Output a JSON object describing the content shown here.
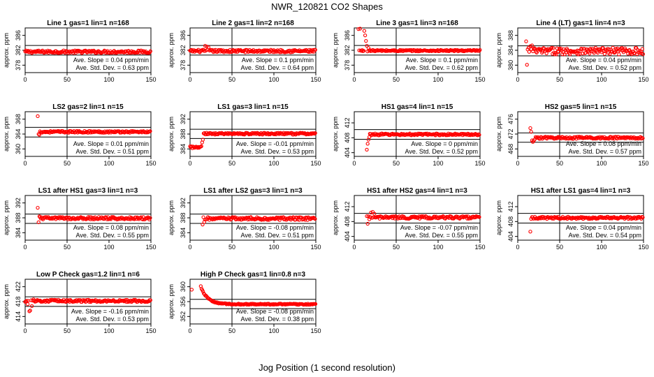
{
  "page": {
    "title": "NWR_120821  CO2 Shapes",
    "xlabel": "Jog Position (1 second resolution)"
  },
  "colors": {
    "points": "#ff0000",
    "axis": "#000000"
  },
  "chart_data": [
    {
      "type": "scatter",
      "title": "Line 1 gas=1 lin=1 n=168",
      "ylabel": "approx. ppm",
      "xlim": [
        0,
        150
      ],
      "ylim": [
        376,
        388
      ],
      "yticks": [
        378,
        382,
        386
      ],
      "xticks": [
        0,
        50,
        100,
        150
      ],
      "hlines": [
        383.3,
        380.7
      ],
      "vline": 50,
      "slope_text": "Ave. Slope = 0.04  ppm/min",
      "std_text": "Ave. Std. Dev. = 0.63  ppm",
      "shape": {
        "level": 381.6,
        "start": 0,
        "noise": 0.35,
        "spikes": []
      }
    },
    {
      "type": "scatter",
      "title": "Line 2 gas=1 lin=2 n=168",
      "ylabel": "approx. ppm",
      "xlim": [
        0,
        150
      ],
      "ylim": [
        376,
        388
      ],
      "yticks": [
        378,
        382,
        386
      ],
      "xticks": [
        0,
        50,
        100,
        150
      ],
      "hlines": [
        383.3,
        380.7
      ],
      "vline": 50,
      "slope_text": "Ave. Slope = 0.1  ppm/min",
      "std_text": "Ave. Std. Dev. = 0.64  ppm",
      "shape": {
        "level": 381.8,
        "start": 0,
        "noise": 0.35,
        "spikes": [
          [
            18,
            383.2
          ],
          [
            20,
            383.0
          ],
          [
            22,
            382.8
          ]
        ]
      }
    },
    {
      "type": "scatter",
      "title": "Line 3 gas=1 lin=3 n=168",
      "ylabel": "approx. ppm",
      "xlim": [
        0,
        150
      ],
      "ylim": [
        376,
        388
      ],
      "yticks": [
        378,
        382,
        386
      ],
      "xticks": [
        0,
        50,
        100,
        150
      ],
      "hlines": [
        383.3,
        380.7
      ],
      "vline": 50,
      "slope_text": "Ave. Slope = 0.1  ppm/min",
      "std_text": "Ave. Std. Dev. = 0.62  ppm",
      "shape": {
        "level": 381.9,
        "start": 5,
        "noise": 0.2,
        "spikes": [
          [
            5,
            387.7
          ],
          [
            7,
            387.8
          ],
          [
            12,
            387.2
          ],
          [
            13,
            386.0
          ],
          [
            14,
            384.5
          ],
          [
            15,
            383.2
          ],
          [
            17,
            382.6
          ]
        ]
      }
    },
    {
      "type": "scatter",
      "title": "Line 4 (LT) gas=1 lin=4 n=3",
      "ylabel": "approx. ppm",
      "xlim": [
        0,
        150
      ],
      "ylim": [
        378,
        390
      ],
      "yticks": [
        380,
        384,
        388
      ],
      "xticks": [
        0,
        50,
        100,
        150
      ],
      "hlines": [
        385.2,
        382.5
      ],
      "vline": 50,
      "slope_text": "Ave. Slope = 0.04  ppm/min",
      "std_text": "Ave. Std. Dev. = 0.52  ppm",
      "shape": {
        "level": 383.8,
        "start": 10,
        "noise": 0.9,
        "spikes": [
          [
            10,
            386.4
          ],
          [
            11,
            380.1
          ],
          [
            13,
            384.7
          ],
          [
            15,
            385.1
          ],
          [
            17,
            385.3
          ]
        ]
      }
    },
    {
      "type": "scatter",
      "title": "LS2 gas=2 lin=1 n=15",
      "ylabel": "approx. ppm",
      "xlim": [
        0,
        150
      ],
      "ylim": [
        358,
        370
      ],
      "yticks": [
        360,
        364,
        368
      ],
      "xticks": [
        0,
        50,
        100,
        150
      ],
      "hlines": [
        365.8,
        363.2
      ],
      "vline": 50,
      "slope_text": "Ave. Slope = 0.01  ppm/min",
      "std_text": "Ave. Std. Dev. = 0.51  ppm",
      "shape": {
        "level": 364.6,
        "start": 15,
        "noise": 0.25,
        "spikes": [
          [
            15,
            368.8
          ],
          [
            16,
            364.0
          ],
          [
            17,
            363.8
          ]
        ]
      }
    },
    {
      "type": "scatter",
      "title": "LS1 gas=3 lin=1 n=15",
      "ylabel": "approx. ppm",
      "xlim": [
        0,
        150
      ],
      "ylim": [
        382,
        394
      ],
      "yticks": [
        384,
        388,
        392
      ],
      "xticks": [
        0,
        50,
        100,
        150
      ],
      "hlines": [
        389.3,
        386.8
      ],
      "vline": 50,
      "slope_text": "Ave. Slope = -0.01  ppm/min",
      "std_text": "Ave. Std. Dev. = 0.53  ppm",
      "shape": {
        "level": 388.1,
        "start": 0,
        "noise": 0.25,
        "step": [
          16,
          384.4
        ]
      }
    },
    {
      "type": "scatter",
      "title": "HS1 gas=4 lin=1 n=15",
      "ylabel": "approx. ppm",
      "xlim": [
        0,
        150
      ],
      "ylim": [
        403,
        415
      ],
      "yticks": [
        404,
        408,
        412
      ],
      "xticks": [
        0,
        50,
        100,
        150
      ],
      "hlines": [
        410.2,
        407.6
      ],
      "vline": 50,
      "slope_text": "Ave. Slope = 0  ppm/min",
      "std_text": "Ave. Std. Dev. = 0.52  ppm",
      "shape": {
        "level": 408.9,
        "start": 15,
        "noise": 0.25,
        "spikes": [
          [
            15,
            404.8
          ],
          [
            16,
            406.4
          ],
          [
            17,
            407.5
          ],
          [
            18,
            408.2
          ]
        ]
      }
    },
    {
      "type": "scatter",
      "title": "HS2 gas=5 lin=1 n=15",
      "ylabel": "approx. ppm",
      "xlim": [
        0,
        150
      ],
      "ylim": [
        466,
        478
      ],
      "yticks": [
        468,
        472,
        476
      ],
      "xticks": [
        0,
        50,
        100,
        150
      ],
      "hlines": [
        472.3,
        469.8
      ],
      "vline": 50,
      "slope_text": "Ave. Slope = 0.08  ppm/min",
      "std_text": "Ave. Std. Dev. = 0.57  ppm",
      "shape": {
        "level": 471.0,
        "start": 15,
        "noise": 0.3,
        "spikes": [
          [
            15,
            473.6
          ],
          [
            16,
            472.6
          ],
          [
            17,
            470.3
          ],
          [
            18,
            469.9
          ],
          [
            19,
            470.2
          ],
          [
            20,
            470.5
          ]
        ]
      }
    },
    {
      "type": "scatter",
      "title": "LS1 after HS1 gas=3 lin=1 n=3",
      "ylabel": "approx. ppm",
      "xlim": [
        0,
        150
      ],
      "ylim": [
        382,
        394
      ],
      "yticks": [
        384,
        388,
        392
      ],
      "xticks": [
        0,
        50,
        100,
        150
      ],
      "hlines": [
        389.0,
        386.5
      ],
      "vline": 50,
      "slope_text": "Ave. Slope = 0.08  ppm/min",
      "std_text": "Ave. Std. Dev. = 0.55  ppm",
      "shape": {
        "level": 387.9,
        "start": 15,
        "noise": 0.35,
        "spikes": [
          [
            15,
            390.7
          ],
          [
            16,
            386.8
          ],
          [
            17,
            388.4
          ]
        ]
      }
    },
    {
      "type": "scatter",
      "title": "LS1 after LS2 gas=3 lin=1 n=3",
      "ylabel": "approx. ppm",
      "xlim": [
        0,
        150
      ],
      "ylim": [
        382,
        394
      ],
      "yticks": [
        384,
        388,
        392
      ],
      "xticks": [
        0,
        50,
        100,
        150
      ],
      "hlines": [
        389.0,
        386.5
      ],
      "vline": 50,
      "slope_text": "Ave. Slope = -0.08  ppm/min",
      "std_text": "Ave. Std. Dev. = 0.51  ppm",
      "shape": {
        "level": 387.8,
        "start": 15,
        "noise": 0.4,
        "spikes": [
          [
            15,
            386.2
          ],
          [
            17,
            386.9
          ],
          [
            19,
            387.6
          ]
        ]
      }
    },
    {
      "type": "scatter",
      "title": "HS1 after HS2 gas=4 lin=1 n=3",
      "ylabel": "approx. ppm",
      "xlim": [
        0,
        150
      ],
      "ylim": [
        403,
        415
      ],
      "yticks": [
        404,
        408,
        412
      ],
      "xticks": [
        0,
        50,
        100,
        150
      ],
      "hlines": [
        410.2,
        407.6
      ],
      "vline": 50,
      "slope_text": "Ave. Slope = -0.07  ppm/min",
      "std_text": "Ave. Std. Dev. = 0.55  ppm",
      "shape": {
        "level": 409.1,
        "start": 15,
        "noise": 0.35,
        "spikes": [
          [
            16,
            407.4
          ],
          [
            18,
            408.6
          ],
          [
            20,
            410.4
          ],
          [
            22,
            410.6
          ],
          [
            24,
            410.1
          ]
        ]
      }
    },
    {
      "type": "scatter",
      "title": "HS1 after LS1 gas=4 lin=1 n=3",
      "ylabel": "approx. ppm",
      "xlim": [
        0,
        150
      ],
      "ylim": [
        403,
        415
      ],
      "yticks": [
        404,
        408,
        412
      ],
      "xticks": [
        0,
        50,
        100,
        150
      ],
      "hlines": [
        410.2,
        407.6
      ],
      "vline": 50,
      "slope_text": "Ave. Slope = 0.04  ppm/min",
      "std_text": "Ave. Std. Dev. = 0.54  ppm",
      "shape": {
        "level": 409.0,
        "start": 15,
        "noise": 0.3,
        "spikes": [
          [
            15,
            405.3
          ],
          [
            17,
            409.2
          ]
        ]
      }
    },
    {
      "type": "scatter",
      "title": "Low P Check gas=1.2 lin=1 n=6",
      "ylabel": "approx. ppm",
      "xlim": [
        0,
        150
      ],
      "ylim": [
        412,
        424
      ],
      "yticks": [
        414,
        418,
        422
      ],
      "xticks": [
        0,
        50,
        100,
        150
      ],
      "hlines": [
        419.3,
        416.7
      ],
      "vline": 50,
      "slope_text": "Ave. Slope = -0.16  ppm/min",
      "std_text": "Ave. Std. Dev. = 0.53  ppm",
      "shape": {
        "level": 418.2,
        "start": 0,
        "noise": 0.3,
        "spikes": [
          [
            1,
            418.0
          ],
          [
            3,
            417.3
          ],
          [
            5,
            415.4
          ],
          [
            6,
            415.6
          ],
          [
            8,
            416.8
          ],
          [
            10,
            418.6
          ]
        ]
      }
    },
    {
      "type": "scatter",
      "title": "High P Check gas=1 lin=0.8 n=3",
      "ylabel": "approx. ppm",
      "xlim": [
        0,
        150
      ],
      "ylim": [
        350,
        362
      ],
      "yticks": [
        352,
        356,
        360
      ],
      "xticks": [
        0,
        50,
        100,
        150
      ],
      "hlines": [
        356.6,
        354.1
      ],
      "vline": 50,
      "slope_text": "Ave. Slope = -0.08  ppm/min",
      "std_text": "Ave. Std. Dev. = 0.38  ppm",
      "shape": {
        "level": 355.3,
        "start": 2,
        "noise": 0.15,
        "decay": [
          12,
          360.5,
          8
        ]
      }
    }
  ]
}
